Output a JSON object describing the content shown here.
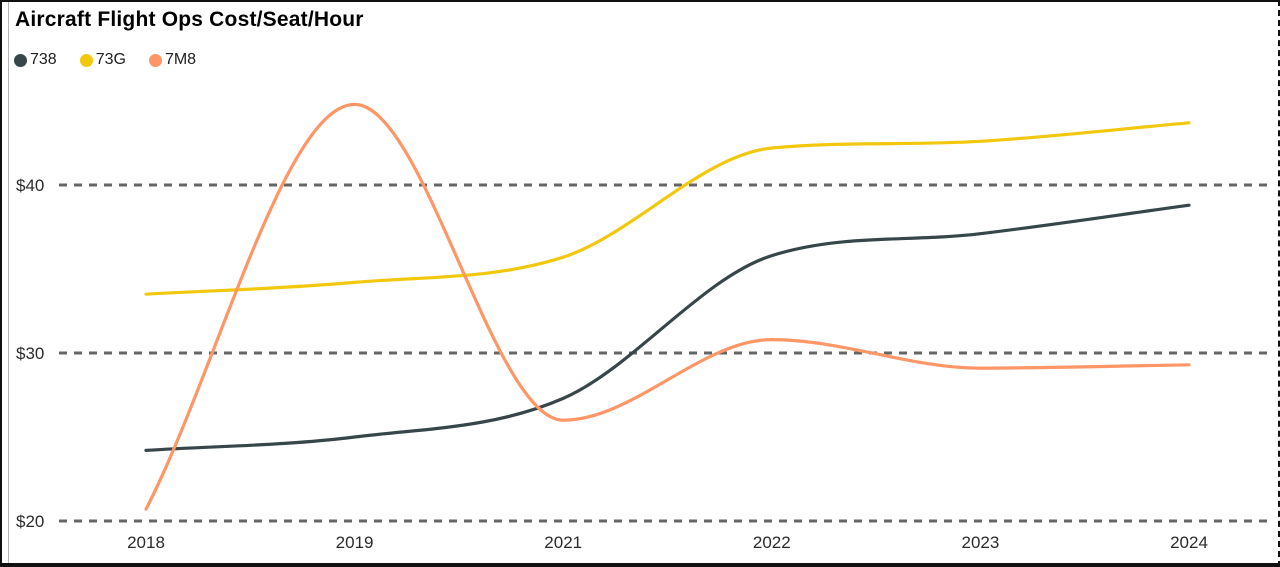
{
  "title": "Aircraft Flight Ops Cost/Seat/Hour",
  "legend": [
    {
      "label": "738",
      "color": "#374649"
    },
    {
      "label": "73G",
      "color": "#F2C80F"
    },
    {
      "label": "7M8",
      "color": "#FE9666"
    }
  ],
  "chart_data": {
    "type": "line",
    "title": "Aircraft Flight Ops Cost/Seat/Hour",
    "categories": [
      "2018",
      "2019",
      "2021",
      "2022",
      "2023",
      "2024"
    ],
    "series": [
      {
        "name": "738",
        "color": "#374649",
        "values": [
          24.2,
          25.0,
          27.3,
          35.8,
          37.1,
          38.8
        ]
      },
      {
        "name": "73G",
        "color": "#F2C80F",
        "values": [
          33.5,
          34.2,
          35.7,
          42.2,
          42.6,
          43.7
        ]
      },
      {
        "name": "7M8",
        "color": "#FE9666",
        "values": [
          20.7,
          44.8,
          26.0,
          30.8,
          29.1,
          29.3
        ]
      }
    ],
    "xlabel": "",
    "ylabel": "",
    "y_ticks": [
      {
        "value": 20,
        "label": "$20"
      },
      {
        "value": 30,
        "label": "$30"
      },
      {
        "value": 40,
        "label": "$40"
      }
    ],
    "ylim": [
      19.5,
      46
    ],
    "grid": "horizontal-dashed",
    "legend_position": "top-left",
    "line_style": "smooth"
  },
  "colors": {
    "background": "#ffffff",
    "frame_border": "#111111",
    "grid": "#666666",
    "axis_text": "#2b2b2b",
    "title_text": "#000000",
    "legend_text": "#212121"
  }
}
